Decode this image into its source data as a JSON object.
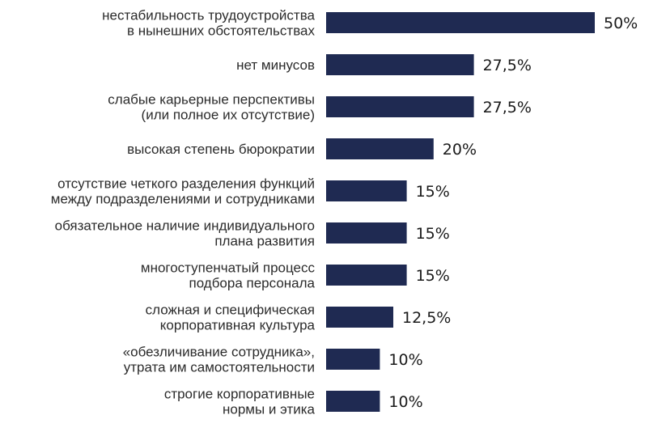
{
  "chart_data": {
    "type": "bar",
    "orientation": "horizontal",
    "title": "",
    "xlabel": "",
    "ylabel": "",
    "xlim": [
      0,
      50
    ],
    "grid": false,
    "legend": "none",
    "bar_color": "#1f2a52",
    "categories": [
      [
        "нестабильность трудоустройства",
        "в нынешних обстоятельствах"
      ],
      [
        "нет минусов"
      ],
      [
        "слабые карьерные перспективы",
        "(или полное их отсутствие)"
      ],
      [
        "высокая степень бюрократии"
      ],
      [
        "отсутствие четкого разделения функций",
        "между подразделениями и сотрудниками"
      ],
      [
        "обязательное наличие индивидуального",
        "плана развития"
      ],
      [
        "многоступенчатый процесс",
        "подбора персонала"
      ],
      [
        "сложная и специфическая",
        "корпоративная культура"
      ],
      [
        "«обезличивание сотрудника»,",
        "утрата им самостоятельности"
      ],
      [
        "строгие корпоративные",
        "нормы и этика"
      ]
    ],
    "values": [
      50,
      27.5,
      27.5,
      20,
      15,
      15,
      15,
      12.5,
      10,
      10
    ],
    "value_labels": [
      "50%",
      "27,5%",
      "27,5%",
      "20%",
      "15%",
      "15%",
      "15%",
      "12,5%",
      "10%",
      "10%"
    ]
  }
}
